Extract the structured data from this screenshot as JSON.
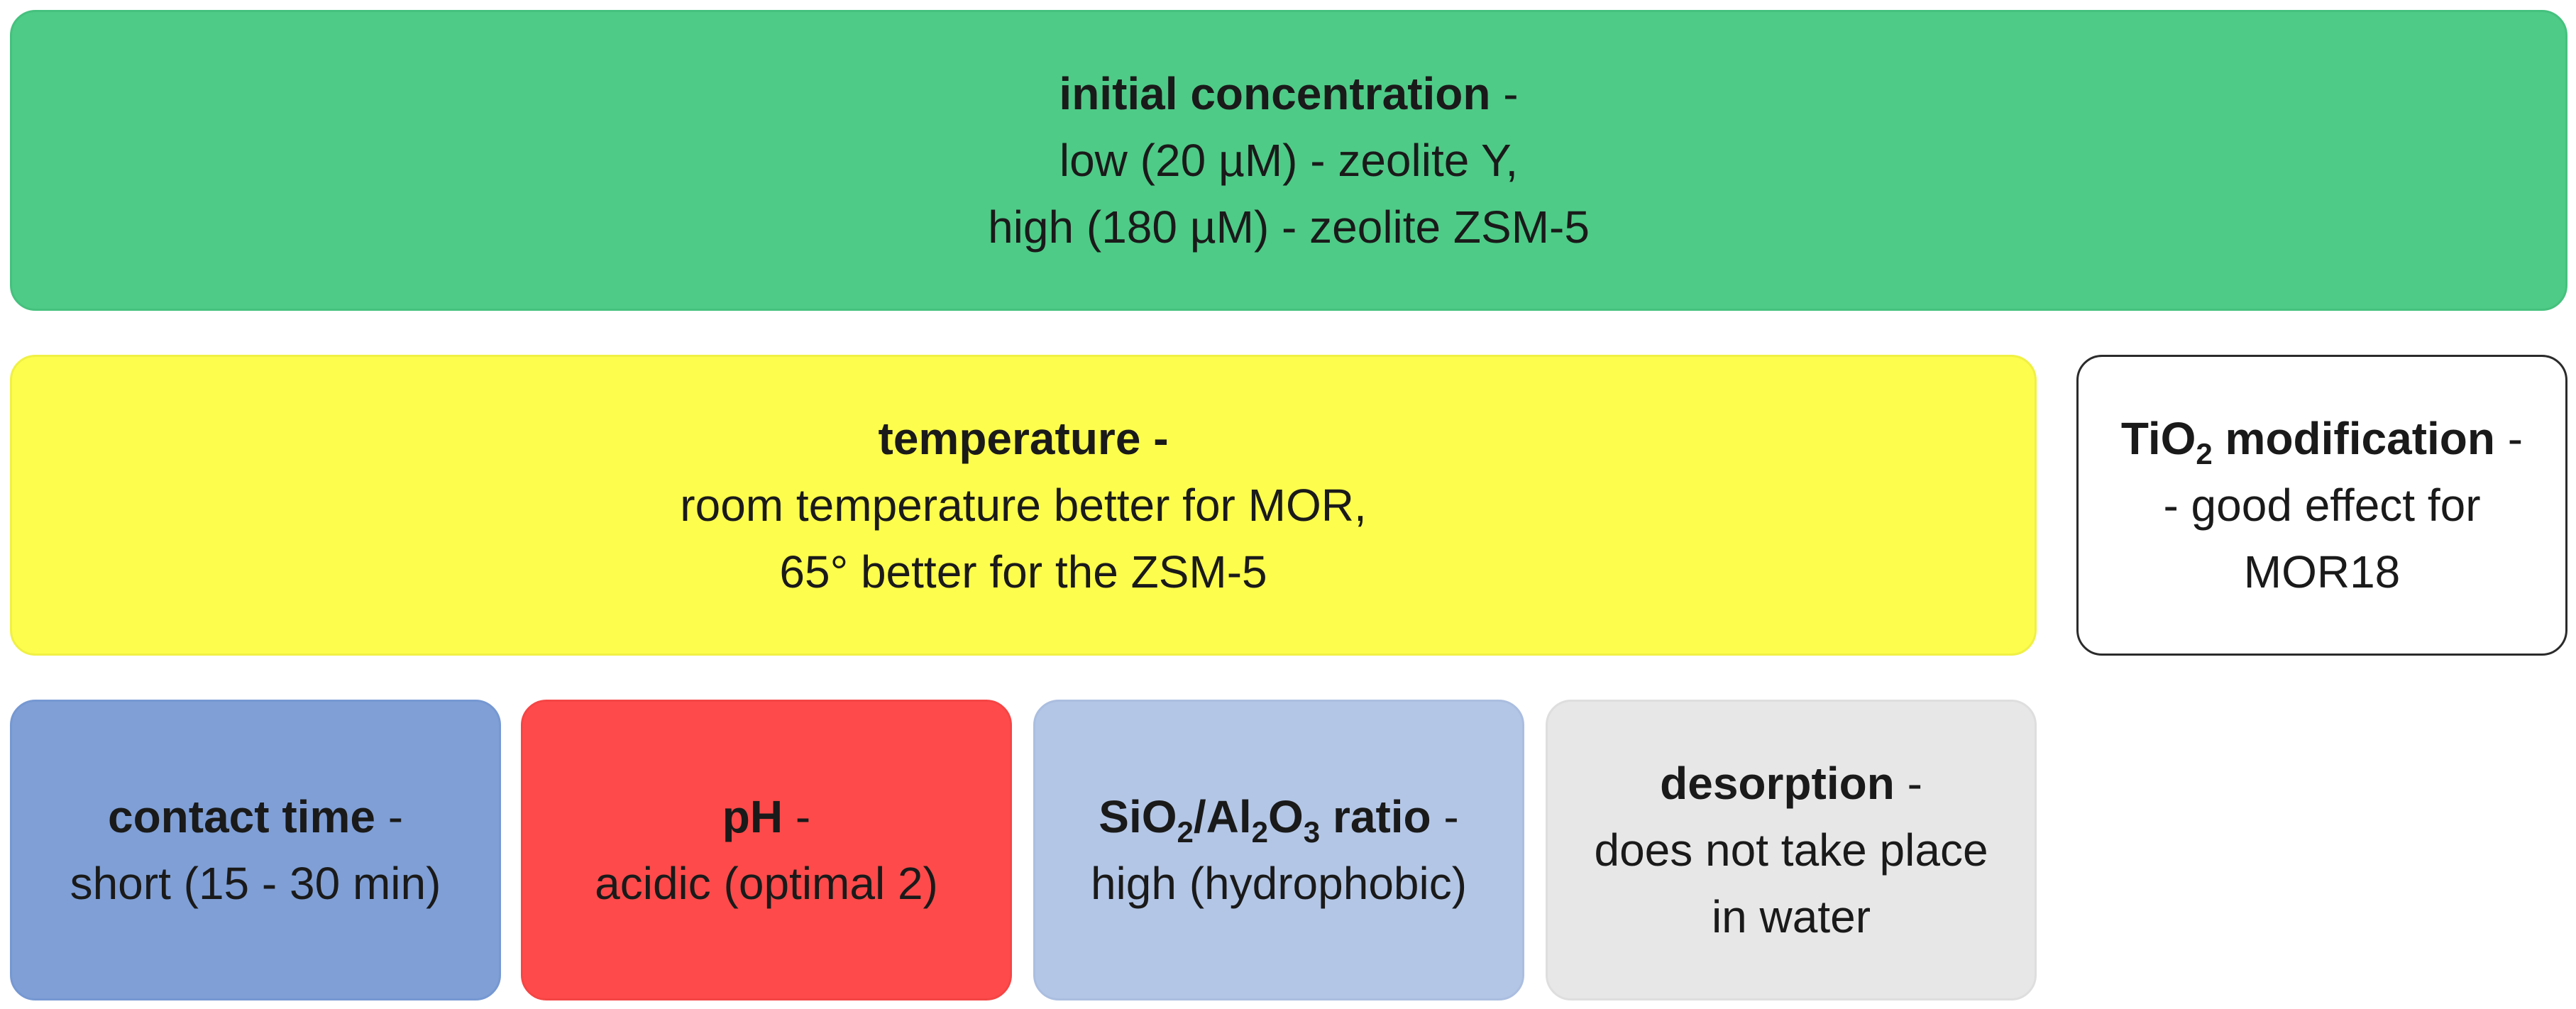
{
  "colors": {
    "concentration": "#4ecb87",
    "temperature": "#fdfd4d",
    "tio2": "#ffffff",
    "contact": "#7f9fd6",
    "ph": "#fe4a4a",
    "ratio": "#b3c6e6",
    "desorption": "#e7e7e7"
  },
  "concentration": {
    "title": "initial concentration",
    "dash": " -",
    "line1": "low (20 µM) - zeolite Y,",
    "line2": "high (180 µM) - zeolite ZSM-5"
  },
  "temperature": {
    "title": "temperature -",
    "line1": "room temperature better for MOR,",
    "line2": "65° better for the ZSM-5"
  },
  "tio2": {
    "title_a": "TiO",
    "title_sub": "2",
    "title_b": " modification",
    "dash": " -",
    "line1": "- good effect for",
    "line2": "MOR18"
  },
  "contact": {
    "title": "contact time",
    "dash": " -",
    "line1": "short (15 - 30 min)"
  },
  "ph": {
    "title": "pH",
    "dash": " -",
    "line1": "acidic (optimal 2)"
  },
  "ratio": {
    "t1": "SiO",
    "s1": "2",
    "t2": "/Al",
    "s2": "2",
    "t3": "O",
    "s3": "3",
    "t4": " ratio",
    "dash": " -",
    "line1": "high (hydrophobic)"
  },
  "desorption": {
    "title": "desorption",
    "dash": " -",
    "line1": "does not take place",
    "line2": "in water"
  }
}
